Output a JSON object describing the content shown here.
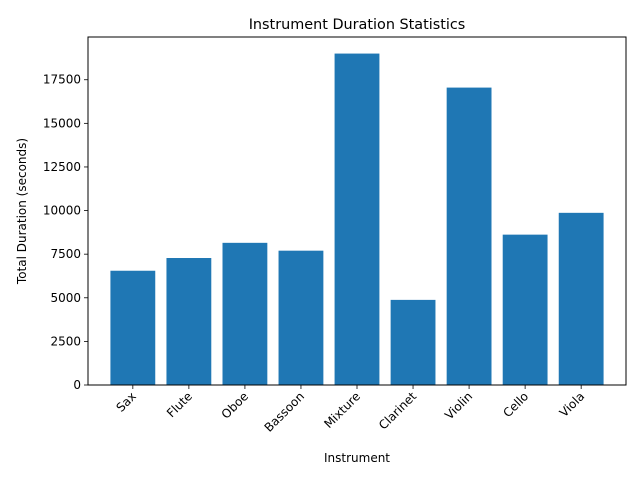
{
  "chart_data": {
    "type": "bar",
    "title": "Instrument Duration Statistics",
    "xlabel": "Instrument",
    "ylabel": "Total Duration (seconds)",
    "categories": [
      "Sax",
      "Flute",
      "Oboe",
      "Bassoon",
      "Mixture",
      "Clarinet",
      "Violin",
      "Cello",
      "Viola"
    ],
    "values": [
      6550,
      7280,
      8150,
      7700,
      19000,
      4880,
      17050,
      8620,
      9870
    ],
    "ylim": [
      0,
      19950
    ],
    "yticks": [
      0,
      2500,
      5000,
      7500,
      10000,
      12500,
      15000,
      17500
    ],
    "ytick_labels": [
      "0",
      "2500",
      "5000",
      "7500",
      "10000",
      "12500",
      "15000",
      "17500"
    ],
    "grid": false,
    "bar_color": "#1f77b4"
  }
}
